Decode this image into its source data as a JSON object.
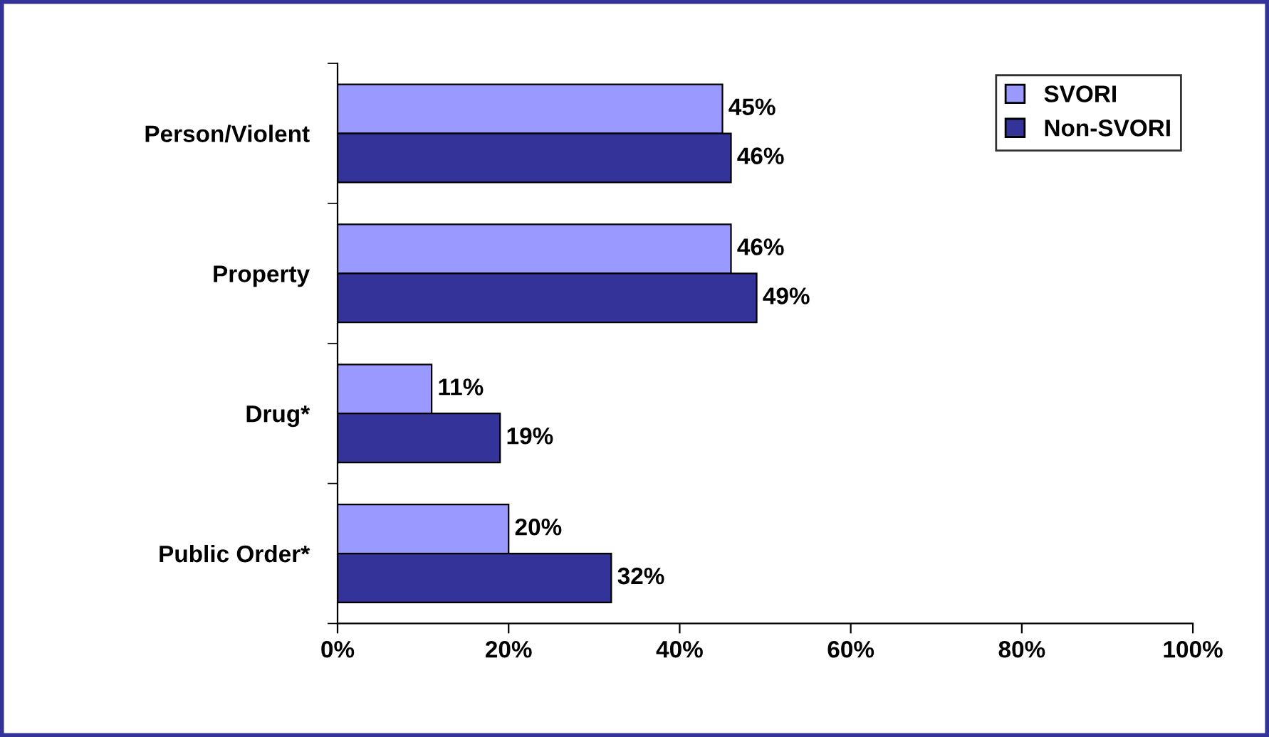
{
  "chart_data": {
    "type": "bar",
    "orientation": "horizontal",
    "categories": [
      "Person/Violent",
      "Property",
      "Drug*",
      "Public Order*"
    ],
    "series": [
      {
        "name": "SVORI",
        "color": "#9999ff",
        "values": [
          45,
          46,
          11,
          20
        ],
        "value_labels": [
          "45%",
          "46%",
          "11%",
          "20%"
        ]
      },
      {
        "name": "Non-SVORI",
        "color": "#333399",
        "values": [
          46,
          49,
          19,
          32
        ],
        "value_labels": [
          "46%",
          "49%",
          "19%",
          "32%"
        ]
      }
    ],
    "xlim": [
      0,
      100
    ],
    "xticks": [
      {
        "value": 0,
        "label": "0%"
      },
      {
        "value": 20,
        "label": "20%"
      },
      {
        "value": 40,
        "label": "40%"
      },
      {
        "value": 60,
        "label": "60%"
      },
      {
        "value": 80,
        "label": "80%"
      },
      {
        "value": 100,
        "label": "100%"
      }
    ],
    "legend": "top right",
    "grid": false
  }
}
